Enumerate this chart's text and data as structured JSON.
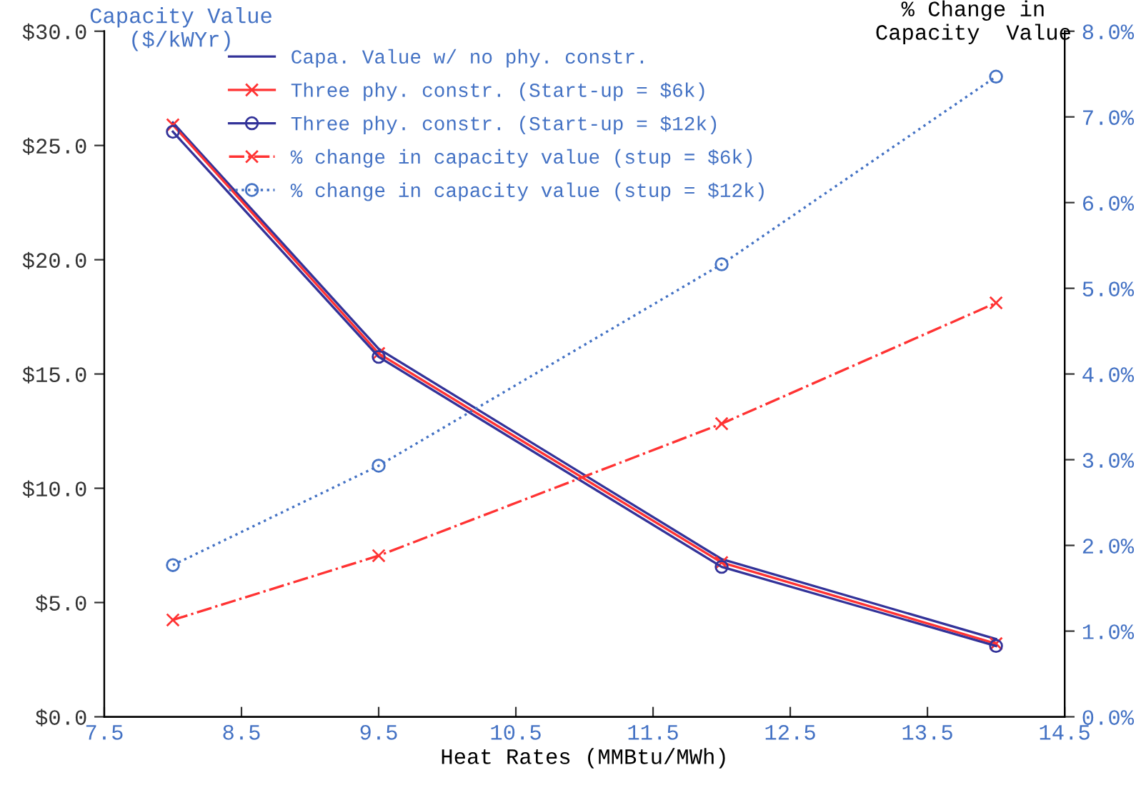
{
  "chart_data": {
    "type": "line",
    "xlabel": "Heat Rates (MMBtu/MWh)",
    "ylabel": "Capacity Value\n($/kWYr)",
    "y2label": "% Change in\nCapacity  Value",
    "x": [
      8,
      9.5,
      12,
      14
    ],
    "series": [
      {
        "name": "Capa. Value w/ no phy. constr.",
        "color": "#333399",
        "values": [
          26.0,
          16.1,
          6.9,
          3.4
        ],
        "marker": "none",
        "line_style": "solid"
      },
      {
        "name": "Three phy. constr. (Start-up = $6k)",
        "color": "#ff3333",
        "values": [
          25.9,
          15.9,
          6.75,
          3.2
        ],
        "marker": "cross",
        "line_style": "solid"
      },
      {
        "name": "Three phy. constr. (Start-up = $12k)",
        "color": "#333399",
        "values": [
          25.6,
          15.75,
          6.56,
          3.1
        ],
        "marker": "circle",
        "line_style": "solid"
      },
      {
        "name": "% change in capacity value (stup = $6k)",
        "color": "#ff3333",
        "values": [
          1.13,
          1.88,
          3.42,
          4.83
        ],
        "marker": "cross",
        "line_style": "dashdot",
        "axis": "y2"
      },
      {
        "name": "% change in capacity value (stup = $12k)",
        "color": "#4472c4",
        "values": [
          1.77,
          2.93,
          5.28,
          7.47
        ],
        "marker": "circle",
        "line_style": "dotted",
        "axis": "y2"
      }
    ],
    "xlim": [
      7.5,
      14.5
    ],
    "xticks": [
      7.5,
      8.5,
      9.5,
      10.5,
      11.5,
      12.5,
      13.5,
      14.5
    ],
    "ylim": [
      0,
      30
    ],
    "yticks": [
      {
        "value": 0,
        "label": "$0.0"
      },
      {
        "value": 5,
        "label": "$5.0"
      },
      {
        "value": 10,
        "label": "$10.0"
      },
      {
        "value": 15,
        "label": "$15.0"
      },
      {
        "value": 20,
        "label": "$20.0"
      },
      {
        "value": 25,
        "label": "$25.0"
      },
      {
        "value": 30,
        "label": "$30.0"
      }
    ],
    "y2lim": [
      0,
      8
    ],
    "y2ticks": [
      {
        "value": 0,
        "label": "0.0%"
      },
      {
        "value": 1,
        "label": "1.0%"
      },
      {
        "value": 2,
        "label": "2.0%"
      },
      {
        "value": 3,
        "label": "3.0%"
      },
      {
        "value": 4,
        "label": "4.0%"
      },
      {
        "value": 5,
        "label": "5.0%"
      },
      {
        "value": 6,
        "label": "6.0%"
      },
      {
        "value": 7,
        "label": "7.0%"
      },
      {
        "value": 8,
        "label": "8.0%"
      }
    ],
    "grid": false,
    "legend": "top"
  }
}
